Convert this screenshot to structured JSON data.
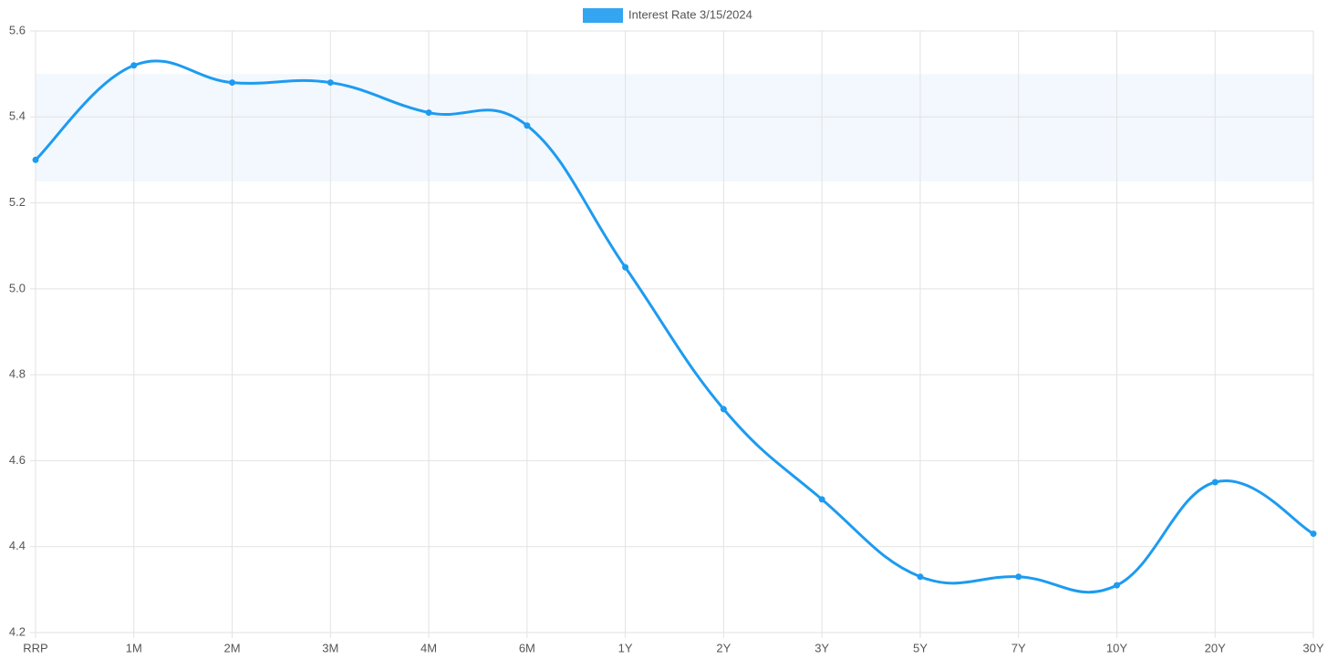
{
  "chart_data": {
    "type": "line",
    "categories": [
      "RRP",
      "1M",
      "2M",
      "3M",
      "4M",
      "6M",
      "1Y",
      "2Y",
      "3Y",
      "5Y",
      "7Y",
      "10Y",
      "20Y",
      "30Y"
    ],
    "series": [
      {
        "name": "Interest Rate 3/15/2024",
        "color": "#1d9bf0",
        "values": [
          5.3,
          5.52,
          5.48,
          5.48,
          5.41,
          5.38,
          5.05,
          4.72,
          4.51,
          4.33,
          4.33,
          4.31,
          4.55,
          4.43
        ]
      }
    ],
    "band": {
      "ylim": [
        5.25,
        5.5
      ],
      "color": "#f2f8fd"
    },
    "ylim": [
      4.2,
      5.6
    ],
    "yticks": [
      4.2,
      4.4,
      4.6,
      4.8,
      {
        "value": 5,
        "label": "5.0"
      },
      5.2,
      5.4,
      5.6
    ],
    "grid": true,
    "legend": "top"
  }
}
